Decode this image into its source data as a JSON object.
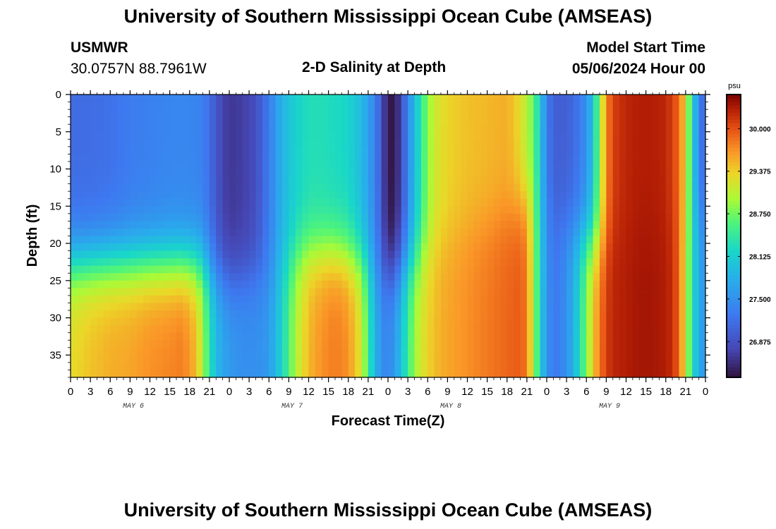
{
  "header": {
    "title": "University of Southern Mississippi Ocean Cube (AMSEAS)",
    "station_name": "USMWR",
    "station_coords": "30.0757N  88.7961W",
    "plot_title": "2-D Salinity at Depth",
    "model_start_label": "Model Start Time",
    "model_start_value": "05/06/2024 Hour 00"
  },
  "footer": {
    "title": "University of Southern Mississippi Ocean Cube (AMSEAS)"
  },
  "chart_data": {
    "type": "heatmap",
    "title": "2-D Salinity at Depth",
    "xlabel": "Forecast Time(Z)",
    "ylabel": "Depth (ft)",
    "x_range_hours": [
      0,
      96
    ],
    "x_tick_labels": [
      "0",
      "3",
      "6",
      "9",
      "12",
      "15",
      "18",
      "21",
      "0",
      "3",
      "6",
      "9",
      "12",
      "15",
      "18",
      "21",
      "0",
      "3",
      "6",
      "9",
      "12",
      "15",
      "18",
      "21",
      "0",
      "3",
      "6",
      "9",
      "12",
      "15",
      "18",
      "21",
      "0"
    ],
    "day_labels": [
      "MAY 6",
      "MAY 7",
      "MAY 8",
      "MAY 9"
    ],
    "y_range_ft": [
      0,
      38
    ],
    "y_ticks": [
      0,
      5,
      10,
      15,
      20,
      25,
      30,
      35
    ],
    "colorbar": {
      "unit": "psu",
      "range": [
        26.35,
        30.5
      ],
      "tick_values": [
        30.0,
        29.375,
        28.75,
        28.125,
        27.5,
        26.875
      ],
      "tick_labels": [
        "30.000",
        "29.375",
        "28.750",
        "28.125",
        "27.500",
        "26.875"
      ]
    },
    "surface_salinity_psu": {
      "hours": [
        0,
        3,
        6,
        9,
        12,
        15,
        18,
        20,
        21.5,
        23,
        24,
        26,
        28,
        30,
        32,
        34,
        36,
        38,
        40,
        42,
        44,
        46,
        47,
        48,
        49,
        50,
        51,
        52,
        53,
        54,
        55,
        57,
        60,
        63,
        66,
        68,
        70,
        71,
        72,
        73,
        74,
        76,
        78,
        79,
        80,
        81,
        82,
        84,
        86,
        88,
        90,
        92,
        93,
        94,
        95,
        96
      ],
      "values": [
        27.15,
        27.15,
        27.2,
        27.3,
        27.35,
        27.4,
        27.4,
        27.35,
        27.05,
        26.75,
        26.65,
        26.7,
        26.85,
        27.3,
        27.85,
        28.15,
        28.3,
        28.3,
        28.25,
        28.2,
        27.9,
        27.4,
        26.9,
        26.4,
        26.4,
        26.8,
        27.4,
        27.9,
        28.4,
        28.85,
        29.15,
        29.35,
        29.45,
        29.5,
        29.55,
        29.3,
        28.7,
        28.1,
        27.3,
        27.05,
        27.0,
        27.1,
        27.5,
        28.0,
        28.9,
        29.7,
        30.1,
        30.25,
        30.3,
        30.3,
        30.25,
        29.9,
        29.3,
        28.2,
        27.4,
        27.0
      ]
    },
    "bottom_salinity_psu": {
      "hours": [
        0,
        3,
        6,
        9,
        12,
        15,
        17,
        19,
        20,
        21,
        22,
        24,
        26,
        28,
        30,
        32,
        34,
        36,
        38,
        40,
        42,
        44,
        45,
        46,
        47,
        48,
        49,
        50,
        51,
        52,
        53,
        54,
        56,
        60,
        63,
        66,
        68,
        69,
        70,
        71,
        72,
        73,
        74,
        76,
        78,
        79,
        80,
        81,
        82,
        84,
        86,
        88,
        90,
        91,
        92,
        93,
        94,
        95,
        96
      ],
      "values": [
        29.3,
        29.45,
        29.55,
        29.6,
        29.7,
        29.75,
        29.8,
        29.5,
        29.0,
        28.4,
        27.9,
        27.6,
        27.5,
        27.5,
        27.6,
        28.2,
        29.0,
        29.5,
        29.7,
        29.8,
        29.7,
        29.2,
        28.5,
        27.9,
        27.5,
        27.4,
        27.6,
        28.0,
        28.5,
        28.9,
        29.2,
        29.35,
        29.55,
        29.7,
        29.8,
        29.9,
        29.95,
        29.8,
        29.0,
        28.2,
        27.5,
        27.3,
        27.3,
        27.8,
        28.8,
        29.4,
        29.8,
        30.1,
        30.25,
        30.3,
        30.35,
        30.35,
        30.3,
        30.2,
        29.9,
        29.2,
        28.3,
        27.8,
        27.5
      ]
    },
    "halocline_depth_ft": {
      "hours": [
        0,
        4,
        8,
        12,
        16,
        20,
        24,
        30,
        34,
        36,
        40,
        44,
        48,
        52,
        56,
        60,
        66,
        70,
        72,
        76,
        80,
        84,
        90,
        96
      ],
      "values": [
        22.5,
        22.5,
        22.5,
        22.5,
        22.5,
        22.5,
        25,
        24,
        21.5,
        21,
        21,
        22,
        24,
        22,
        20,
        18,
        16,
        14,
        16,
        18,
        20,
        18,
        17,
        16
      ]
    }
  }
}
